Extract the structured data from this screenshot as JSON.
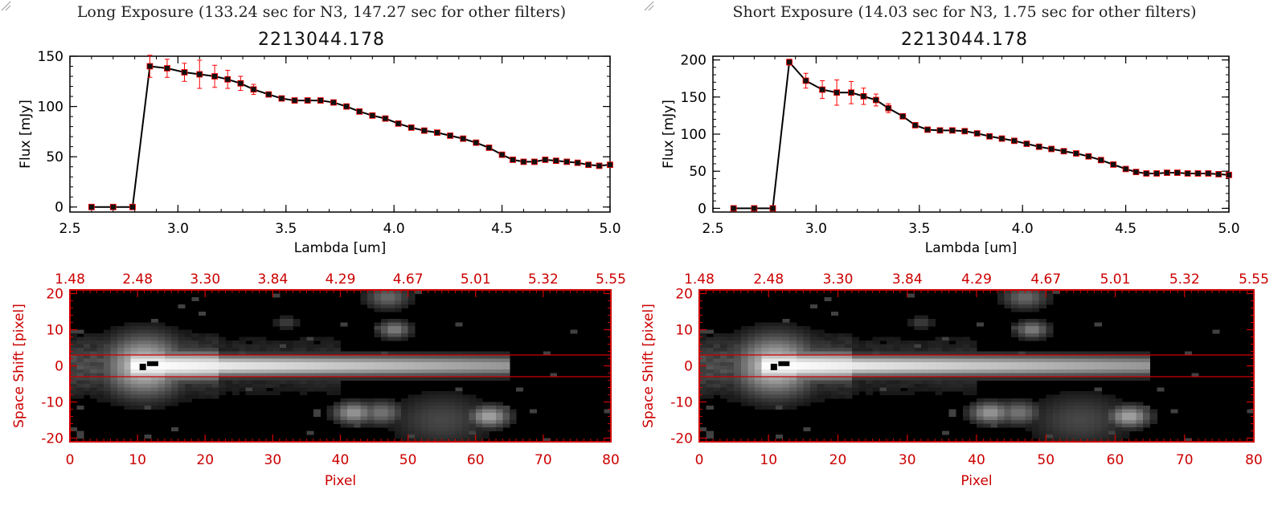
{
  "chart_data": [
    {
      "type": "line",
      "exposure_title": "Long Exposure (133.24 sec for N3, 147.27 sec for other filters)",
      "title": "2213044.178",
      "xlabel": "Lambda [um]",
      "ylabel": "Flux [mJy]",
      "xlim": [
        2.5,
        5.0
      ],
      "ylim": [
        -5,
        150
      ],
      "xticks": [
        "2.5",
        "3.0",
        "3.5",
        "4.0",
        "4.5",
        "5.0"
      ],
      "yticks": [
        "0",
        "50",
        "100",
        "150"
      ],
      "x": [
        2.6,
        2.7,
        2.79,
        2.87,
        2.95,
        3.03,
        3.1,
        3.17,
        3.23,
        3.29,
        3.35,
        3.42,
        3.48,
        3.54,
        3.6,
        3.66,
        3.72,
        3.78,
        3.84,
        3.9,
        3.96,
        4.02,
        4.08,
        4.14,
        4.2,
        4.26,
        4.32,
        4.38,
        4.44,
        4.5,
        4.55,
        4.6,
        4.65,
        4.7,
        4.75,
        4.8,
        4.85,
        4.9,
        4.95,
        5.0
      ],
      "y": [
        0,
        0,
        0,
        140,
        138,
        134,
        132,
        130,
        127,
        123,
        117,
        112,
        108,
        106,
        106,
        106,
        104,
        100,
        95,
        91,
        88,
        83,
        79,
        76,
        74,
        71,
        68,
        64,
        59,
        52,
        47,
        45,
        45,
        47,
        46,
        45,
        44,
        42,
        41,
        42
      ],
      "yerr": [
        0,
        0,
        0,
        11,
        9,
        9,
        14,
        11,
        9,
        7,
        5,
        2,
        2,
        2,
        2,
        2,
        2,
        2,
        2,
        2,
        2,
        2,
        2,
        2,
        2,
        2,
        2,
        2,
        2,
        2,
        2,
        2,
        2,
        2,
        2,
        2,
        2,
        2,
        2,
        2
      ],
      "colors": {
        "line": "#000000",
        "marker": "#111111",
        "errorbar": "#ff0000"
      }
    },
    {
      "type": "line",
      "exposure_title": "Short Exposure (14.03 sec for N3, 1.75 sec for other filters)",
      "title": "2213044.178",
      "xlabel": "Lambda [um]",
      "ylabel": "Flux [mJy]",
      "xlim": [
        2.5,
        5.0
      ],
      "ylim": [
        -5,
        205
      ],
      "xticks": [
        "2.5",
        "3.0",
        "3.5",
        "4.0",
        "4.5",
        "5.0"
      ],
      "yticks": [
        "0",
        "50",
        "100",
        "150",
        "200"
      ],
      "x": [
        2.6,
        2.7,
        2.79,
        2.87,
        2.95,
        3.03,
        3.1,
        3.17,
        3.23,
        3.29,
        3.35,
        3.42,
        3.48,
        3.54,
        3.6,
        3.66,
        3.72,
        3.78,
        3.84,
        3.9,
        3.96,
        4.02,
        4.08,
        4.14,
        4.2,
        4.26,
        4.32,
        4.38,
        4.44,
        4.5,
        4.55,
        4.6,
        4.65,
        4.7,
        4.75,
        4.8,
        4.85,
        4.9,
        4.95,
        5.0
      ],
      "y": [
        0,
        0,
        0,
        197,
        172,
        160,
        156,
        156,
        151,
        146,
        135,
        124,
        112,
        106,
        105,
        105,
        104,
        101,
        97,
        94,
        91,
        87,
        83,
        80,
        77,
        74,
        70,
        65,
        59,
        53,
        49,
        47,
        47,
        48,
        48,
        47,
        47,
        47,
        46,
        45
      ],
      "yerr": [
        0,
        0,
        0,
        4,
        10,
        12,
        17,
        15,
        11,
        8,
        6,
        2,
        2,
        2,
        2,
        2,
        2,
        2,
        2,
        2,
        2,
        2,
        2,
        2,
        2,
        2,
        2,
        2,
        2,
        2,
        2,
        2,
        2,
        2,
        2,
        2,
        2,
        2,
        2,
        2
      ],
      "colors": {
        "line": "#000000",
        "marker": "#111111",
        "errorbar": "#ff0000"
      }
    },
    {
      "type": "heatmap",
      "xlabel": "Pixel",
      "ylabel": "Space Shift [pixel]",
      "xlim": [
        0,
        80
      ],
      "ylim": [
        -21,
        21
      ],
      "xticks": [
        "0",
        "10",
        "20",
        "30",
        "40",
        "50",
        "60",
        "70",
        "80"
      ],
      "yticks": [
        "-20",
        "-10",
        "0",
        "10",
        "20"
      ],
      "top_ticks": [
        "1.48",
        "2.48",
        "3.30",
        "3.84",
        "4.29",
        "4.67",
        "5.01",
        "5.32",
        "5.55"
      ],
      "aperture_lines_y": [
        3,
        -3
      ],
      "trace_center_y": 0,
      "trace_extent_x": [
        5,
        65
      ],
      "colors": {
        "axis": "#cc0000",
        "aperture": "#cc0000",
        "background": "#000000"
      }
    },
    {
      "type": "heatmap",
      "xlabel": "Pixel",
      "ylabel": "Space Shift [pixel]",
      "xlim": [
        0,
        80
      ],
      "ylim": [
        -21,
        21
      ],
      "xticks": [
        "0",
        "10",
        "20",
        "30",
        "40",
        "50",
        "60",
        "70",
        "80"
      ],
      "yticks": [
        "-20",
        "-10",
        "0",
        "10",
        "20"
      ],
      "top_ticks": [
        "1.48",
        "2.48",
        "3.30",
        "3.84",
        "4.29",
        "4.67",
        "5.01",
        "5.32",
        "5.55"
      ],
      "aperture_lines_y": [
        3,
        -3
      ],
      "trace_center_y": 0,
      "trace_extent_x": [
        5,
        65
      ],
      "colors": {
        "axis": "#cc0000",
        "aperture": "#cc0000",
        "background": "#000000"
      }
    }
  ]
}
